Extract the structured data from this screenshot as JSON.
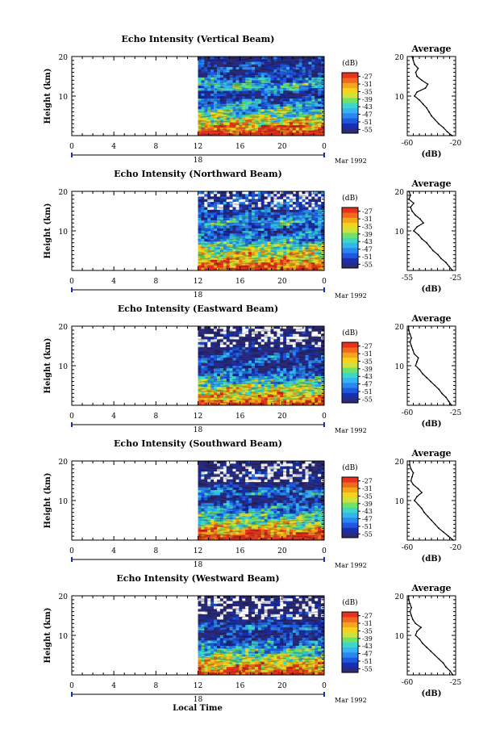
{
  "figure": {
    "x_axis_title": "Local Time",
    "date_label": "Mar 1992",
    "day_label": "18",
    "colorbar_unit": "(dB)",
    "average_title": "Average",
    "average_xlabel": "(dB)",
    "ylabel": "Height (km)"
  },
  "colors": {
    "scale": [
      "#2b2b7a",
      "#1a2fb0",
      "#1f58e0",
      "#2a86f0",
      "#33b5f0",
      "#3fd6c8",
      "#6fe26a",
      "#cde23c",
      "#f5d21c",
      "#f5a51a",
      "#f06a1e",
      "#e8321e"
    ],
    "no_data": "#ffffff"
  },
  "chart_data": [
    {
      "type": "heatmap",
      "title": "Echo Intensity (Vertical Beam)",
      "x_ticks": [
        "0",
        "4",
        "8",
        "12",
        "16",
        "20",
        "0"
      ],
      "xlim": [
        0,
        24
      ],
      "y_ticks": [
        "10",
        "20"
      ],
      "ylim": [
        0,
        20
      ],
      "data_start_hour": 12,
      "colorbar_ticks": [
        "-27",
        "-31",
        "-35",
        "-39",
        "-43",
        "-47",
        "-51",
        "-55"
      ],
      "colorbar_range": [
        -57,
        -25
      ],
      "no_data_above_km": 21,
      "profile": {
        "xlim": [
          -60,
          -20
        ],
        "x_ticks": [
          "-60",
          "-20"
        ],
        "heights": [
          0,
          1,
          2,
          3,
          4,
          5,
          6,
          7,
          8,
          9,
          10,
          11,
          12,
          13,
          14,
          15,
          16,
          17,
          18,
          19,
          20
        ],
        "values": [
          -23,
          -27,
          -30,
          -34,
          -37,
          -40,
          -42,
          -44,
          -47,
          -50,
          -54,
          -52,
          -45,
          -43,
          -48,
          -52,
          -53,
          -51,
          -54,
          -55,
          -56
        ]
      }
    },
    {
      "type": "heatmap",
      "title": "Echo Intensity (Northward Beam)",
      "x_ticks": [
        "0",
        "4",
        "8",
        "12",
        "16",
        "20",
        "0"
      ],
      "xlim": [
        0,
        24
      ],
      "y_ticks": [
        "10",
        "20"
      ],
      "ylim": [
        0,
        20
      ],
      "data_start_hour": 12,
      "colorbar_ticks": [
        "-27",
        "-31",
        "-35",
        "-39",
        "-43",
        "-47",
        "-51",
        "-55"
      ],
      "colorbar_range": [
        -57,
        -25
      ],
      "no_data_above_km": 15.5,
      "profile": {
        "xlim": [
          -55,
          -25
        ],
        "x_ticks": [
          "-55",
          "-25"
        ],
        "heights": [
          0,
          1,
          2,
          3,
          4,
          5,
          6,
          7,
          8,
          9,
          10,
          11,
          12,
          13,
          14,
          15,
          16,
          17,
          18,
          19,
          20
        ],
        "values": [
          -27,
          -29,
          -31,
          -34,
          -36,
          -39,
          -41,
          -43,
          -46,
          -48,
          -51,
          -49,
          -45,
          -47,
          -50,
          -52,
          -53,
          -51,
          -54,
          -53,
          -54
        ]
      }
    },
    {
      "type": "heatmap",
      "title": "Echo Intensity (Eastward Beam)",
      "x_ticks": [
        "0",
        "4",
        "8",
        "12",
        "16",
        "20",
        "0"
      ],
      "xlim": [
        0,
        24
      ],
      "y_ticks": [
        "10",
        "20"
      ],
      "ylim": [
        0,
        20
      ],
      "data_start_hour": 12,
      "colorbar_ticks": [
        "-27",
        "-31",
        "-35",
        "-39",
        "-43",
        "-47",
        "-51",
        "-55"
      ],
      "colorbar_range": [
        -57,
        -25
      ],
      "no_data_above_km": 14.5,
      "profile": {
        "xlim": [
          -60,
          -25
        ],
        "x_ticks": [
          "-60",
          "-25"
        ],
        "heights": [
          0,
          1,
          2,
          3,
          4,
          5,
          6,
          7,
          8,
          9,
          10,
          11,
          12,
          13,
          14,
          15,
          16,
          17,
          18,
          19,
          20
        ],
        "values": [
          -28,
          -30,
          -32,
          -35,
          -37,
          -40,
          -43,
          -46,
          -49,
          -51,
          -54,
          -53,
          -52,
          -55,
          -56,
          -57,
          -58,
          -57,
          -58,
          -59,
          -59
        ]
      }
    },
    {
      "type": "heatmap",
      "title": "Echo Intensity (Southward Beam)",
      "x_ticks": [
        "0",
        "4",
        "8",
        "12",
        "16",
        "20",
        "0"
      ],
      "xlim": [
        0,
        24
      ],
      "y_ticks": [
        "10",
        "20"
      ],
      "ylim": [
        0,
        20
      ],
      "data_start_hour": 12,
      "colorbar_ticks": [
        "-27",
        "-31",
        "-35",
        "-39",
        "-43",
        "-47",
        "-51",
        "-55"
      ],
      "colorbar_range": [
        -57,
        -25
      ],
      "no_data_above_km": 14.5,
      "profile": {
        "xlim": [
          -60,
          -20
        ],
        "x_ticks": [
          "-60",
          "-20"
        ],
        "heights": [
          0,
          1,
          2,
          3,
          4,
          5,
          6,
          7,
          8,
          9,
          10,
          11,
          12,
          13,
          14,
          15,
          16,
          17,
          18,
          19,
          20
        ],
        "values": [
          -22,
          -26,
          -30,
          -34,
          -37,
          -40,
          -43,
          -46,
          -48,
          -51,
          -54,
          -52,
          -48,
          -51,
          -55,
          -57,
          -56,
          -55,
          -57,
          -58,
          -58
        ]
      }
    },
    {
      "type": "heatmap",
      "title": "Echo Intensity (Westward Beam)",
      "x_ticks": [
        "0",
        "4",
        "8",
        "12",
        "16",
        "20",
        "0"
      ],
      "xlim": [
        0,
        24
      ],
      "y_ticks": [
        "10",
        "20"
      ],
      "ylim": [
        0,
        20
      ],
      "data_start_hour": 12,
      "colorbar_ticks": [
        "-27",
        "-31",
        "-35",
        "-39",
        "-43",
        "-47",
        "-51",
        "-55"
      ],
      "colorbar_range": [
        -57,
        -25
      ],
      "no_data_above_km": 14,
      "profile": {
        "xlim": [
          -60,
          -25
        ],
        "x_ticks": [
          "-60",
          "-25"
        ],
        "heights": [
          0,
          1,
          2,
          3,
          4,
          5,
          6,
          7,
          8,
          9,
          10,
          11,
          12,
          13,
          14,
          15,
          16,
          17,
          18,
          19,
          20
        ],
        "values": [
          -27,
          -29,
          -32,
          -34,
          -37,
          -40,
          -43,
          -46,
          -49,
          -51,
          -54,
          -53,
          -50,
          -54,
          -56,
          -57,
          -58,
          -57,
          -58,
          -59,
          -59
        ]
      }
    }
  ]
}
